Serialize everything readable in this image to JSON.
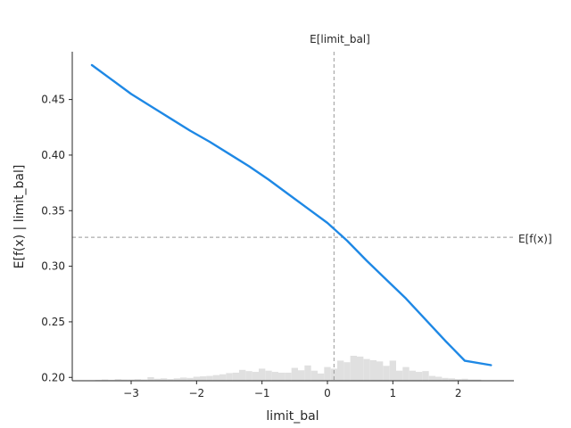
{
  "chart_data": {
    "type": "line",
    "title": "",
    "xlabel": "limit_bal",
    "ylabel": "E[f(x) | limit_bal]",
    "xlim": [
      -3.9,
      2.85
    ],
    "ylim": [
      0.197,
      0.493
    ],
    "xticks": [
      -3,
      -2,
      -1,
      0,
      1,
      2
    ],
    "xtick_labels": [
      "−3",
      "−2",
      "−1",
      "0",
      "1",
      "2"
    ],
    "yticks": [
      0.2,
      0.25,
      0.3,
      0.35,
      0.4,
      0.45
    ],
    "ytick_labels": [
      "0.20",
      "0.25",
      "0.30",
      "0.35",
      "0.40",
      "0.45"
    ],
    "grid": false,
    "line_color": "#1e88e5",
    "series": [
      {
        "x": [
          -3.6,
          -3.3,
          -3.0,
          -2.7,
          -2.4,
          -2.1,
          -1.8,
          -1.5,
          -1.2,
          -0.9,
          -0.6,
          -0.3,
          0.0,
          0.3,
          0.6,
          0.9,
          1.2,
          1.5,
          1.8,
          2.1,
          2.5
        ],
        "y": [
          0.481,
          0.468,
          0.455,
          0.444,
          0.433,
          0.422,
          0.412,
          0.401,
          0.39,
          0.378,
          0.365,
          0.352,
          0.339,
          0.323,
          0.305,
          0.288,
          0.271,
          0.252,
          0.233,
          0.215,
          0.211
        ]
      }
    ],
    "reference_lines": {
      "vertical": {
        "x": 0.1,
        "label": "E[limit_bal]"
      },
      "horizontal": {
        "y": 0.326,
        "label": "E[f(x)]"
      }
    },
    "histogram": {
      "color": "#e0e0e0",
      "bin_width": 0.1,
      "x": [
        -3.5,
        -3.4,
        -3.3,
        -3.2,
        -3.1,
        -3.0,
        -2.9,
        -2.8,
        -2.7,
        -2.6,
        -2.5,
        -2.4,
        -2.3,
        -2.2,
        -2.1,
        -2.0,
        -1.9,
        -1.8,
        -1.7,
        -1.6,
        -1.5,
        -1.4,
        -1.3,
        -1.2,
        -1.1,
        -1.0,
        -0.9,
        -0.8,
        -0.7,
        -0.6,
        -0.5,
        -0.4,
        -0.3,
        -0.2,
        -0.1,
        0.0,
        0.1,
        0.2,
        0.3,
        0.4,
        0.5,
        0.6,
        0.7,
        0.8,
        0.9,
        1.0,
        1.1,
        1.2,
        1.3,
        1.4,
        1.5,
        1.6,
        1.7,
        1.8,
        1.9,
        2.0,
        2.1,
        2.2,
        2.3
      ],
      "counts": [
        0.2,
        0.3,
        0.2,
        0.4,
        0.3,
        0.3,
        0.4,
        0.3,
        0.9,
        0.5,
        0.6,
        0.4,
        0.6,
        0.8,
        0.7,
        1.0,
        1.1,
        1.2,
        1.4,
        1.6,
        1.9,
        2.0,
        2.7,
        2.4,
        2.2,
        3.0,
        2.5,
        2.2,
        2.0,
        2.0,
        3.2,
        2.6,
        3.8,
        2.5,
        1.8,
        3.4,
        3.0,
        5.0,
        4.6,
        6.2,
        6.0,
        5.4,
        5.1,
        4.8,
        3.7,
        5.0,
        2.5,
        3.4,
        2.5,
        2.2,
        2.4,
        1.2,
        1.0,
        0.7,
        0.6,
        0.4,
        0.5,
        0.3,
        0.3
      ]
    }
  }
}
